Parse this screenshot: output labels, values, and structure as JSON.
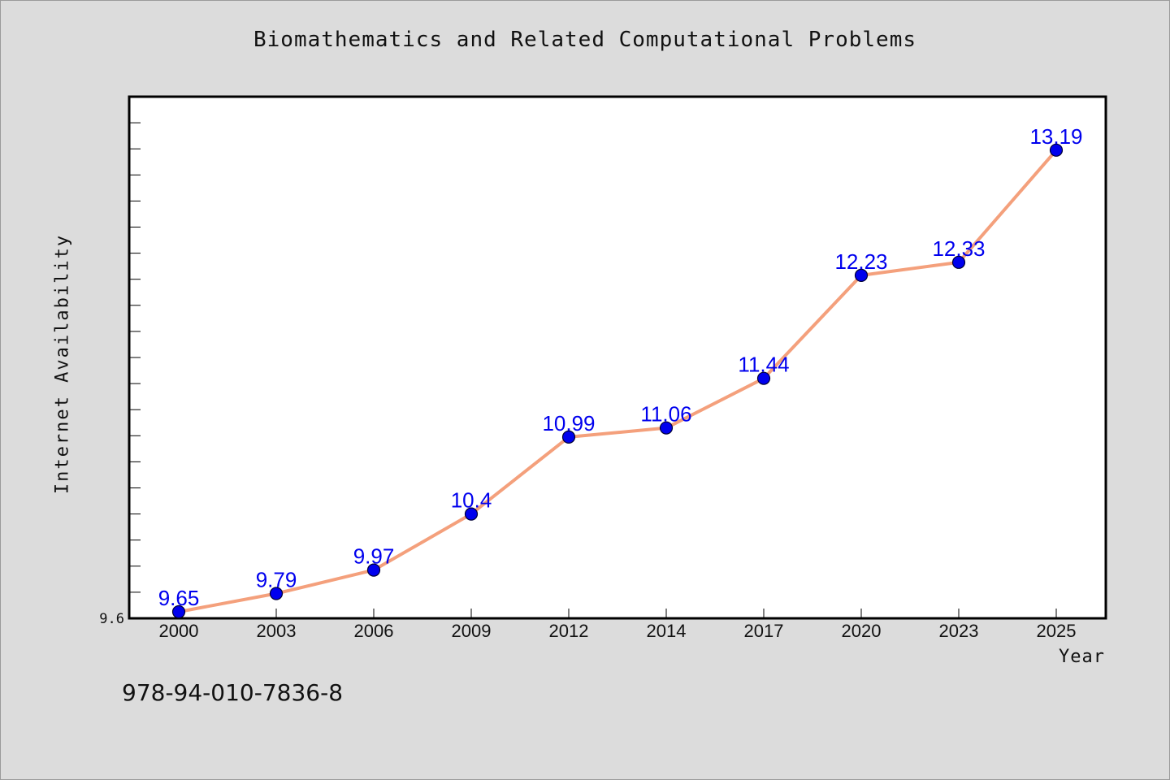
{
  "chart_data": {
    "type": "line",
    "title": "Biomathematics and Related Computational Problems",
    "xlabel": "Year",
    "ylabel": "Internet Availability",
    "categories": [
      "2000",
      "2003",
      "2006",
      "2009",
      "2012",
      "2014",
      "2017",
      "2020",
      "2023",
      "2025"
    ],
    "series": [
      {
        "values": [
          9.65,
          9.79,
          9.97,
          10.4,
          10.99,
          11.06,
          11.44,
          12.23,
          12.33,
          13.19
        ],
        "labels": [
          "9.65",
          "9.79",
          "9.97",
          "10.4",
          "10.99",
          "11.06",
          "11.44",
          "12.23",
          "12.33",
          "13.19"
        ],
        "line_color": "#f4a07c",
        "marker_color": "#0000ee",
        "label_color": "#0000ee"
      }
    ],
    "y_tick_labels": [
      {
        "value": 9.6,
        "label": "9.6"
      }
    ],
    "ylim": [
      9.6,
      13.6
    ],
    "y_minor_step": 0.2,
    "grid": false,
    "legend": "none"
  },
  "footer": {
    "isbn": "978-94-010-7836-8"
  }
}
